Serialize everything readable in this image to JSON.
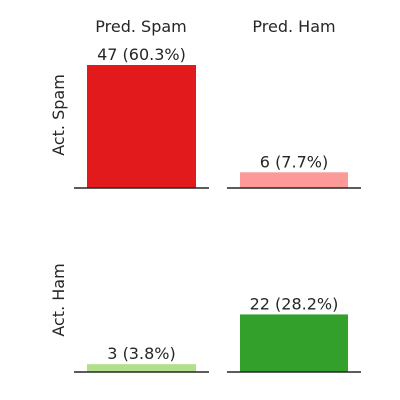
{
  "chart_data": {
    "type": "bar",
    "col_labels": [
      "Pred. Spam",
      "Pred. Ham"
    ],
    "row_labels": [
      "Act. Spam",
      "Act. Ham"
    ],
    "ylim": [
      0,
      47
    ],
    "grid": false,
    "cells": [
      [
        {
          "value": 47,
          "label": "47 (60.3%)",
          "color": "#e31a1c"
        },
        {
          "value": 6,
          "label": "6 (7.7%)",
          "color": "#fb9a99"
        }
      ],
      [
        {
          "value": 3,
          "label": "3 (3.8%)",
          "color": "#b2df8a"
        },
        {
          "value": 22,
          "label": "22 (28.2%)",
          "color": "#33a02c"
        }
      ]
    ]
  }
}
